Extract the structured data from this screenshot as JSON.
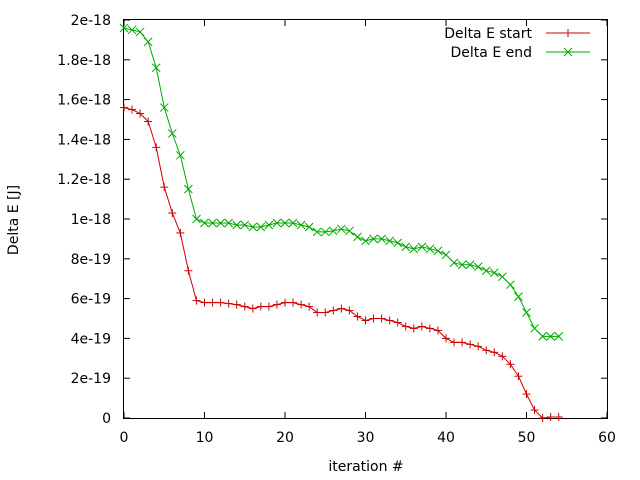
{
  "chart_data": {
    "type": "line",
    "title": "",
    "xlabel": "iteration #",
    "ylabel": "Delta E [J]",
    "xlim": [
      0,
      60
    ],
    "ylim": [
      0,
      2e-18
    ],
    "xticks": [
      0,
      10,
      20,
      30,
      40,
      50,
      60
    ],
    "xtick_labels": [
      "0",
      "10",
      "20",
      "30",
      "40",
      "50",
      "60"
    ],
    "yticks": [
      0,
      2e-19,
      4e-19,
      6e-19,
      8e-19,
      1e-18,
      1.2e-18,
      1.4e-18,
      1.6e-18,
      1.8e-18,
      2e-18
    ],
    "ytick_labels": [
      "0",
      "2e-19",
      "4e-19",
      "6e-19",
      "8e-19",
      "1e-18",
      "1.2e-18",
      "1.4e-18",
      "1.6e-18",
      "1.8e-18",
      "2e-18"
    ],
    "grid": false,
    "legend_position": "top-right",
    "series": [
      {
        "name": "Delta E start",
        "color": "#cc0000",
        "marker": "plus",
        "x": [
          0,
          1,
          2,
          3,
          4,
          5,
          6,
          7,
          8,
          9,
          10,
          11,
          12,
          13,
          14,
          15,
          16,
          17,
          18,
          19,
          20,
          21,
          22,
          23,
          24,
          25,
          26,
          27,
          28,
          29,
          30,
          31,
          32,
          33,
          34,
          35,
          36,
          37,
          38,
          39,
          40,
          41,
          42,
          43,
          44,
          45,
          46,
          47,
          48,
          49,
          50,
          51,
          52,
          53,
          54
        ],
        "y": [
          1.56e-18,
          1.55e-18,
          1.53e-18,
          1.49e-18,
          1.36e-18,
          1.16e-18,
          1.03e-18,
          9.3e-19,
          7.4e-19,
          5.9e-19,
          5.8e-19,
          5.8e-19,
          5.8e-19,
          5.75e-19,
          5.7e-19,
          5.6e-19,
          5.5e-19,
          5.6e-19,
          5.6e-19,
          5.7e-19,
          5.8e-19,
          5.8e-19,
          5.7e-19,
          5.6e-19,
          5.3e-19,
          5.3e-19,
          5.4e-19,
          5.5e-19,
          5.4e-19,
          5.1e-19,
          4.9e-19,
          5e-19,
          5e-19,
          4.9e-19,
          4.8e-19,
          4.6e-19,
          4.5e-19,
          4.6e-19,
          4.5e-19,
          4.4e-19,
          4e-19,
          3.8e-19,
          3.8e-19,
          3.7e-19,
          3.6e-19,
          3.4e-19,
          3.3e-19,
          3.1e-19,
          2.7e-19,
          2.1e-19,
          1.2e-19,
          4e-20,
          0,
          5e-21,
          5e-21
        ]
      },
      {
        "name": "Delta E end",
        "color": "#00aa00",
        "marker": "cross",
        "x": [
          0,
          1,
          2,
          3,
          4,
          5,
          6,
          7,
          8,
          9,
          10,
          11,
          12,
          13,
          14,
          15,
          16,
          17,
          18,
          19,
          20,
          21,
          22,
          23,
          24,
          25,
          26,
          27,
          28,
          29,
          30,
          31,
          32,
          33,
          34,
          35,
          36,
          37,
          38,
          39,
          40,
          41,
          42,
          43,
          44,
          45,
          46,
          47,
          48,
          49,
          50,
          51,
          52,
          53,
          54
        ],
        "y": [
          1.96e-18,
          1.95e-18,
          1.94e-18,
          1.89e-18,
          1.76e-18,
          1.56e-18,
          1.43e-18,
          1.32e-18,
          1.15e-18,
          1e-18,
          9.8e-19,
          9.8e-19,
          9.8e-19,
          9.8e-19,
          9.7e-19,
          9.7e-19,
          9.6e-19,
          9.6e-19,
          9.7e-19,
          9.8e-19,
          9.8e-19,
          9.8e-19,
          9.7e-19,
          9.6e-19,
          9.35e-19,
          9.35e-19,
          9.4e-19,
          9.5e-19,
          9.4e-19,
          9.1e-19,
          8.9e-19,
          9e-19,
          9e-19,
          8.9e-19,
          8.8e-19,
          8.6e-19,
          8.5e-19,
          8.6e-19,
          8.5e-19,
          8.4e-19,
          8.2e-19,
          7.8e-19,
          7.7e-19,
          7.7e-19,
          7.6e-19,
          7.4e-19,
          7.3e-19,
          7.1e-19,
          6.7e-19,
          6.1e-19,
          5.3e-19,
          4.5e-19,
          4.1e-19,
          4.1e-19,
          4.1e-19
        ]
      }
    ]
  }
}
